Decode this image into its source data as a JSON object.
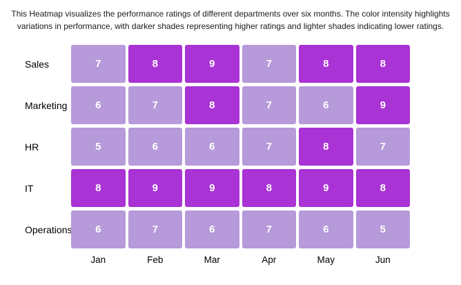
{
  "header": {
    "caption_line1": "This Heatmap visualizes the performance ratings of different departments over six months. The color intensity highlights",
    "caption_line2": "variations in performance, with darker shades representing higher ratings and lighter shades indicating lower ratings."
  },
  "chart_data": {
    "type": "heatmap",
    "title": "This Heatmap visualizes the performance ratings of different departments over six months. The color intensity highlights variations in performance, with darker shades representing higher ratings and lighter shades indicating lower ratings.",
    "rows": [
      "Sales",
      "Marketing",
      "HR",
      "IT",
      "Operations"
    ],
    "columns": [
      "Jan",
      "Feb",
      "Mar",
      "Apr",
      "May",
      "Jun"
    ],
    "values": [
      [
        7,
        8,
        9,
        7,
        8,
        8
      ],
      [
        6,
        7,
        8,
        7,
        6,
        9
      ],
      [
        5,
        6,
        6,
        7,
        8,
        7
      ],
      [
        8,
        9,
        9,
        8,
        9,
        8
      ],
      [
        6,
        7,
        6,
        7,
        6,
        5
      ]
    ],
    "value_min": 5,
    "value_max": 9,
    "colors": {
      "low_shade": "#b69ad9",
      "high_shade": "#a933d4",
      "high_threshold": 8,
      "cell_text": "#ffffff",
      "label_text": "#000000",
      "background": "#ffffff"
    },
    "legend": "none",
    "grid": "gapped-cells",
    "xlabel": "",
    "ylabel": ""
  }
}
